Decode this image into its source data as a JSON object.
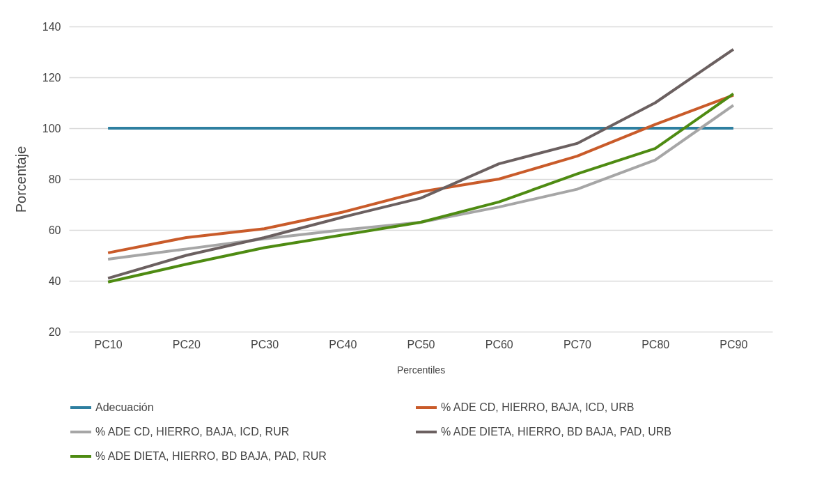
{
  "chart_data": {
    "type": "line",
    "xlabel": "Percentiles",
    "ylabel": "Porcentaje",
    "categories": [
      "PC10",
      "PC20",
      "PC30",
      "PC40",
      "PC50",
      "PC60",
      "PC70",
      "PC80",
      "PC90"
    ],
    "ylim": [
      20,
      140
    ],
    "yticks": [
      20,
      40,
      60,
      80,
      100,
      120,
      140
    ],
    "grid": "y",
    "legend": "bottom",
    "marker": "none",
    "line_style": "solid",
    "series": [
      {
        "name": "Adecuación",
        "color": "#2e7fa0",
        "values": [
          100,
          100,
          100,
          100,
          100,
          100,
          100,
          100,
          100
        ]
      },
      {
        "name": "% ADE CD, HIERRO, BAJA, ICD, URB",
        "color": "#c95b2a",
        "values": [
          51,
          57,
          60.5,
          67,
          75,
          80,
          89,
          101.5,
          113
        ]
      },
      {
        "name": "% ADE CD, HIERRO, BAJA, ICD, RUR",
        "color": "#a6a6a6",
        "values": [
          48.5,
          52.5,
          56.5,
          60,
          63,
          69,
          76,
          87.5,
          109
        ]
      },
      {
        "name": "% ADE DIETA, HIERRO, BD BAJA, PAD,   URB",
        "color": "#6b6060",
        "values": [
          41,
          50,
          57,
          65,
          72.5,
          86,
          94,
          110,
          131
        ]
      },
      {
        "name": "% ADE DIETA, HIERRO, BD BAJA, PAD,   RUR",
        "color": "#4e8b12",
        "values": [
          39.5,
          46.5,
          53,
          58,
          63,
          71,
          82,
          92,
          113.5
        ]
      }
    ]
  }
}
